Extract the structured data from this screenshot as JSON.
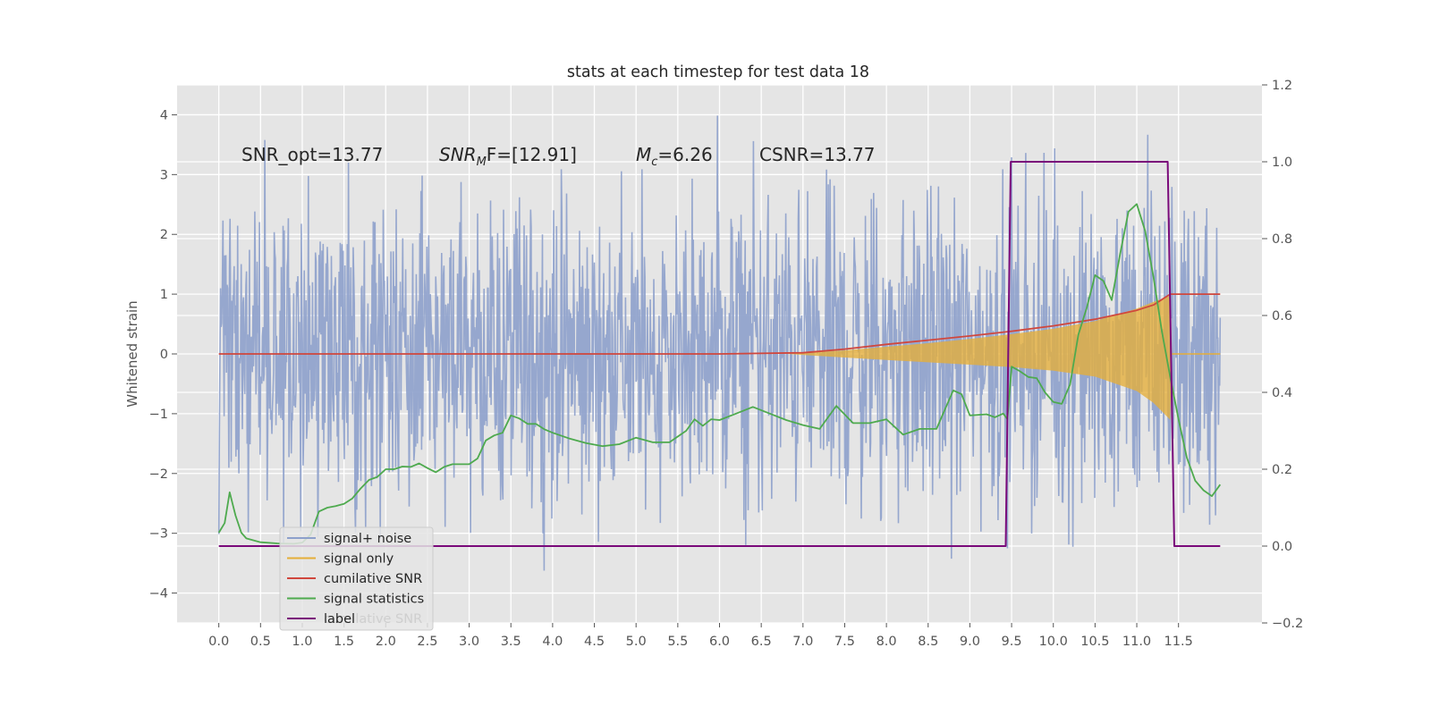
{
  "chart_data": {
    "type": "line",
    "title": "stats at each timestep for test data 18",
    "ylabel": "Whitened strain",
    "xlabel": "",
    "xlim": [
      -0.5,
      12.5
    ],
    "ylim": [
      -4.5,
      4.5
    ],
    "y2lim": [
      -0.2,
      1.2
    ],
    "grid": true,
    "x_ticks": [
      0.0,
      0.5,
      1.0,
      1.5,
      2.0,
      2.5,
      3.0,
      3.5,
      4.0,
      4.5,
      5.0,
      5.5,
      6.0,
      6.5,
      7.0,
      7.5,
      8.0,
      8.5,
      9.0,
      9.5,
      10.0,
      10.5,
      11.0,
      11.5
    ],
    "x_tick_labels": [
      "0.0",
      "0.5",
      "1.0",
      "1.5",
      "2.0",
      "2.5",
      "3.0",
      "3.5",
      "4.0",
      "4.5",
      "5.0",
      "5.5",
      "6.0",
      "6.5",
      "7.0",
      "7.5",
      "8.0",
      "8.5",
      "9.0",
      "9.5",
      "10.0",
      "10.5",
      "11.0",
      "11.5"
    ],
    "y_ticks": [
      -4,
      -3,
      -2,
      -1,
      0,
      1,
      2,
      3,
      4
    ],
    "y_tick_labels": [
      "−4",
      "−3",
      "−2",
      "−1",
      "0",
      "1",
      "2",
      "3",
      "4"
    ],
    "y2_ticks": [
      -0.2,
      0.0,
      0.2,
      0.4,
      0.6,
      0.8,
      1.0,
      1.2
    ],
    "y2_tick_labels": [
      "−0.2",
      "0.0",
      "0.2",
      "0.4",
      "0.6",
      "0.8",
      "1.0",
      "1.2"
    ],
    "annotations": {
      "snr_opt": "SNR_opt=13.77",
      "snr_mf_main": "SNR",
      "snr_mf_sub": "M",
      "snr_mf_rest": "F=[12.91]",
      "mc_main": "M",
      "mc_sub": "c",
      "mc_rest": "=6.26",
      "csnr": "CSNR=13.77"
    },
    "legend": {
      "placement": "lower-left",
      "entries": [
        "signal+ noise",
        "signal only",
        "cumilative SNR",
        "signal statistics",
        "label"
      ],
      "hidden_text": "cumilative SNR"
    },
    "series": [
      {
        "name": "signal+ noise",
        "axis": "left",
        "kind": "noise",
        "x_range": [
          0.0,
          12.0
        ],
        "amplitude_range": [
          -4.1,
          4.1
        ],
        "color": "#8da0cb"
      },
      {
        "name": "signal only",
        "axis": "left",
        "kind": "envelope",
        "x": [
          6.8,
          7.5,
          8.0,
          8.5,
          9.0,
          9.5,
          10.0,
          10.5,
          11.0,
          11.2,
          11.4,
          11.42
        ],
        "upper": [
          0.0,
          0.06,
          0.12,
          0.18,
          0.25,
          0.33,
          0.42,
          0.55,
          0.76,
          0.87,
          0.97,
          0.0
        ],
        "lower": [
          0.0,
          -0.06,
          -0.1,
          -0.14,
          -0.18,
          -0.22,
          -0.28,
          -0.38,
          -0.62,
          -0.82,
          -1.1,
          0.0
        ],
        "color": "#e5ae38"
      },
      {
        "name": "cumilative SNR",
        "axis": "left",
        "x": [
          0.0,
          6.0,
          7.0,
          7.5,
          8.0,
          8.5,
          9.0,
          9.5,
          10.0,
          10.5,
          11.0,
          11.2,
          11.4,
          12.0
        ],
        "values": [
          0.0,
          0.0,
          0.02,
          0.08,
          0.16,
          0.23,
          0.3,
          0.38,
          0.47,
          0.58,
          0.73,
          0.82,
          1.0,
          1.0
        ],
        "color": "#d0473d"
      },
      {
        "name": "signal statistics",
        "axis": "right",
        "x": [
          0.0,
          0.07,
          0.13,
          0.2,
          0.27,
          0.33,
          0.5,
          0.7,
          0.9,
          1.0,
          1.1,
          1.2,
          1.3,
          1.4,
          1.5,
          1.6,
          1.7,
          1.8,
          1.9,
          2.0,
          2.1,
          2.2,
          2.3,
          2.4,
          2.5,
          2.6,
          2.7,
          2.8,
          3.0,
          3.1,
          3.2,
          3.3,
          3.4,
          3.5,
          3.6,
          3.7,
          3.8,
          3.9,
          4.0,
          4.2,
          4.4,
          4.6,
          4.8,
          5.0,
          5.2,
          5.4,
          5.6,
          5.7,
          5.8,
          5.9,
          6.0,
          6.2,
          6.4,
          6.6,
          6.8,
          7.0,
          7.2,
          7.4,
          7.6,
          7.8,
          8.0,
          8.2,
          8.4,
          8.6,
          8.8,
          8.9,
          9.0,
          9.2,
          9.3,
          9.4,
          9.45,
          9.5,
          9.6,
          9.7,
          9.8,
          9.9,
          10.0,
          10.1,
          10.2,
          10.3,
          10.4,
          10.5,
          10.6,
          10.7,
          10.8,
          10.9,
          11.0,
          11.1,
          11.2,
          11.3,
          11.4,
          11.5,
          11.6,
          11.7,
          11.8,
          11.9,
          12.0
        ],
        "values": [
          0.035,
          0.06,
          0.14,
          0.08,
          0.035,
          0.02,
          0.01,
          0.007,
          0.006,
          0.009,
          0.03,
          0.09,
          0.1,
          0.104,
          0.11,
          0.124,
          0.15,
          0.172,
          0.18,
          0.2,
          0.2,
          0.207,
          0.206,
          0.215,
          0.203,
          0.192,
          0.206,
          0.213,
          0.213,
          0.228,
          0.275,
          0.288,
          0.295,
          0.34,
          0.332,
          0.318,
          0.318,
          0.304,
          0.295,
          0.28,
          0.268,
          0.26,
          0.265,
          0.282,
          0.27,
          0.27,
          0.3,
          0.33,
          0.313,
          0.33,
          0.328,
          0.345,
          0.362,
          0.345,
          0.328,
          0.315,
          0.305,
          0.365,
          0.32,
          0.32,
          0.33,
          0.29,
          0.305,
          0.305,
          0.405,
          0.395,
          0.34,
          0.343,
          0.335,
          0.345,
          0.33,
          0.467,
          0.455,
          0.44,
          0.437,
          0.4,
          0.375,
          0.37,
          0.42,
          0.55,
          0.62,
          0.705,
          0.69,
          0.64,
          0.76,
          0.87,
          0.89,
          0.82,
          0.7,
          0.56,
          0.44,
          0.33,
          0.23,
          0.17,
          0.145,
          0.13,
          0.16
        ],
        "color": "#4eaa4e"
      },
      {
        "name": "label",
        "axis": "right",
        "x": [
          0.0,
          9.43,
          9.49,
          11.37,
          11.45,
          12.0
        ],
        "values": [
          0.0,
          0.0,
          1.0,
          1.0,
          0.0,
          0.0
        ],
        "color": "#7a0a7a"
      }
    ]
  }
}
